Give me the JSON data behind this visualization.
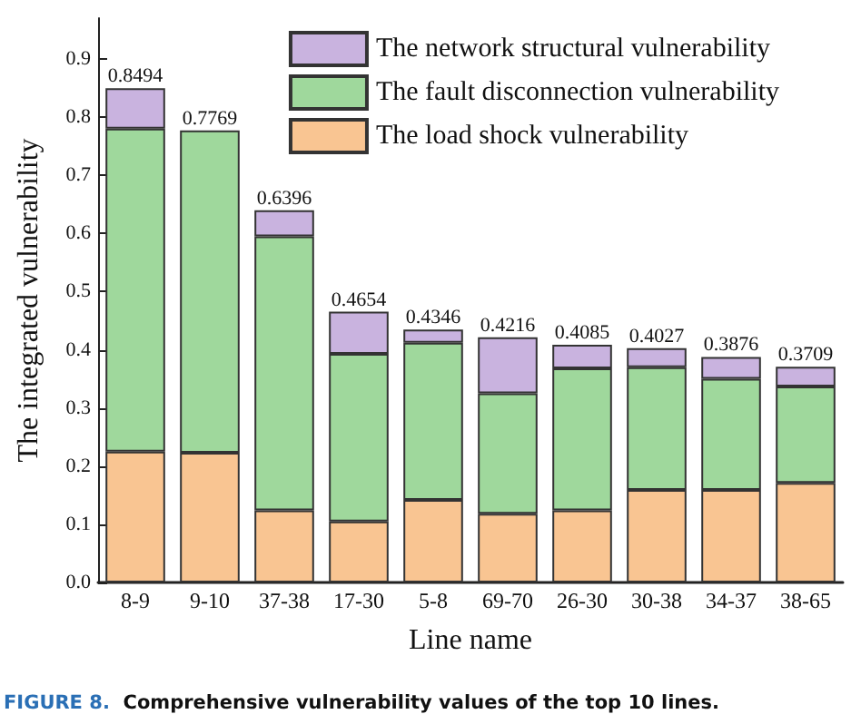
{
  "chart_data": {
    "type": "bar",
    "stacked": true,
    "xlabel": "Line name",
    "ylabel": "The integrated vulnerability",
    "categories": [
      "8-9",
      "9-10",
      "37-38",
      "17-30",
      "5-8",
      "69-70",
      "26-30",
      "30-38",
      "34-37",
      "38-65"
    ],
    "series": [
      {
        "name": "The load shock vulnerability",
        "color": "#f9c592",
        "values": [
          0.225,
          0.223,
          0.124,
          0.105,
          0.142,
          0.118,
          0.124,
          0.159,
          0.159,
          0.171
        ]
      },
      {
        "name": "The fault disconnection vulnerability",
        "color": "#9fd89c",
        "values": [
          0.555,
          0.5539,
          0.471,
          0.288,
          0.27,
          0.207,
          0.244,
          0.211,
          0.191,
          0.166
        ]
      },
      {
        "name": "The network structural vulnerability",
        "color": "#c9b3df",
        "values": [
          0.0694,
          null,
          0.0446,
          0.0724,
          0.0226,
          0.0966,
          0.0405,
          0.0327,
          0.0376,
          0.0339
        ]
      }
    ],
    "totals": [
      "0.8494",
      "0.7769",
      "0.6396",
      "0.4654",
      "0.4346",
      "0.4216",
      "0.4085",
      "0.4027",
      "0.3876",
      "0.3709"
    ],
    "ylim": [
      0,
      0.97
    ],
    "yticks": [
      {
        "value": 0,
        "label": "0.0"
      },
      {
        "value": 0.1,
        "label": "0.1"
      },
      {
        "value": 0.2,
        "label": "0.2"
      },
      {
        "value": 0.3,
        "label": "0.3"
      },
      {
        "value": 0.4,
        "label": "0.4"
      },
      {
        "value": 0.5,
        "label": "0.5"
      },
      {
        "value": 0.6,
        "label": "0.6"
      },
      {
        "value": 0.7,
        "label": "0.7"
      },
      {
        "value": 0.8,
        "label": "0.8"
      },
      {
        "value": 0.9,
        "label": "0.9"
      }
    ],
    "grid": false,
    "legend": "top right",
    "annotations": [
      "FIGURE 8.  Comprehensive vulnerability values of the top 10 lines."
    ]
  }
}
